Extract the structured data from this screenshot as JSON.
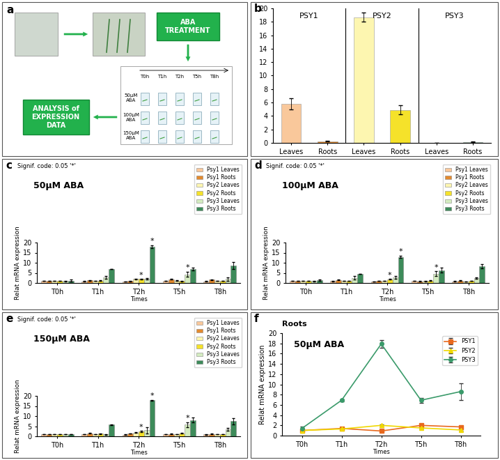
{
  "diagram": {
    "label": "a",
    "boxes": [
      "ABA TREATMENT",
      "ANALYSIS of EXPRESSION DATA"
    ],
    "times": [
      "T0h",
      "T1h",
      "T2h",
      "T5h",
      "T8h"
    ],
    "doses": [
      "50µM ABA",
      "100µM ABA",
      "150µM ABA"
    ]
  },
  "chart_data": [
    {
      "type": "bar",
      "annotations": [
        "b"
      ],
      "groups": [
        "PSY1",
        "PSY2",
        "PSY3"
      ],
      "categories": [
        "Leaves",
        "Roots",
        "Leaves",
        "Roots",
        "Leaves",
        "Roots"
      ],
      "values": [
        5.8,
        0.25,
        18.7,
        4.9,
        0.0,
        0.15
      ],
      "errors": [
        0.8,
        0.05,
        0.7,
        0.7,
        0.0,
        0.05
      ],
      "colors": [
        "#f9c89b",
        "#e38a2e",
        "#fdf6b0",
        "#f5e22a",
        "#d4ecc0",
        "#3d8b5a"
      ],
      "ylim": [
        0,
        20
      ],
      "yticks": [
        0,
        2,
        4,
        6,
        8,
        10,
        12,
        14,
        16,
        18,
        20
      ]
    },
    {
      "type": "bar",
      "annotations": [
        "c",
        "Signif. code: 0.05 '*'"
      ],
      "title": "50µM ABA",
      "xlabel": "Times",
      "ylabel": "Relat mRNA expression",
      "legend": "upper right",
      "categories": [
        "T0h",
        "T1h",
        "T2h",
        "T5h",
        "T8h"
      ],
      "ylim": [
        0,
        20
      ],
      "yticks": [
        0,
        5,
        10,
        15,
        20
      ],
      "series": [
        {
          "name": "Psy1 Leaves",
          "color": "#f9c89b",
          "values": [
            1.0,
            0.8,
            0.7,
            1.0,
            0.8
          ],
          "errors": [
            0.1,
            0.1,
            0.1,
            0.1,
            0.1
          ],
          "significance": [
            null,
            null,
            null,
            null,
            null
          ]
        },
        {
          "name": "Psy1 Roots",
          "color": "#e38a2e",
          "values": [
            1.0,
            1.3,
            0.9,
            1.8,
            1.6
          ],
          "errors": [
            0.1,
            0.1,
            0.1,
            0.2,
            0.2
          ],
          "significance": [
            null,
            null,
            null,
            null,
            null
          ]
        },
        {
          "name": "Psy2 Leaves",
          "color": "#fdf6b0",
          "values": [
            1.0,
            1.0,
            2.0,
            1.2,
            1.0
          ],
          "errors": [
            0.1,
            0.1,
            0.2,
            0.1,
            0.1
          ],
          "significance": [
            null,
            null,
            null,
            null,
            null
          ]
        },
        {
          "name": "Psy2 Roots",
          "color": "#f5e22a",
          "values": [
            1.0,
            1.2,
            1.9,
            0.9,
            1.0
          ],
          "errors": [
            0.1,
            0.1,
            0.1,
            0.1,
            0.1
          ],
          "significance": [
            null,
            null,
            "*",
            null,
            null
          ]
        },
        {
          "name": "Psy3 Leaves",
          "color": "#d4ecc0",
          "values": [
            1.0,
            2.8,
            2.0,
            4.3,
            2.0
          ],
          "errors": [
            0.2,
            0.8,
            0.3,
            1.2,
            0.8
          ],
          "significance": [
            null,
            null,
            null,
            "*",
            null
          ]
        },
        {
          "name": "Psy3 Roots",
          "color": "#3d8b5a",
          "values": [
            1.2,
            6.9,
            17.9,
            6.9,
            8.6
          ],
          "errors": [
            0.5,
            0.1,
            0.8,
            0.6,
            1.7
          ],
          "significance": [
            null,
            null,
            "*",
            null,
            null
          ]
        }
      ]
    },
    {
      "type": "bar",
      "annotations": [
        "d",
        "Signif. code: 0.05 '*'"
      ],
      "title": "100µM ABA",
      "xlabel": "Times",
      "ylabel": "Relat mRNA expression",
      "legend": "upper right",
      "categories": [
        "T0h",
        "T1h",
        "T2h",
        "T5h",
        "T8h"
      ],
      "ylim": [
        0,
        20
      ],
      "yticks": [
        0,
        5,
        10,
        15,
        20
      ],
      "series": [
        {
          "name": "Psy1 Leaves",
          "color": "#f9c89b",
          "values": [
            1.0,
            0.9,
            0.7,
            1.0,
            0.8
          ],
          "errors": [
            0.1,
            0.1,
            0.1,
            0.1,
            0.1
          ],
          "significance": [
            null,
            null,
            null,
            null,
            null
          ]
        },
        {
          "name": "Psy1 Roots",
          "color": "#e38a2e",
          "values": [
            1.0,
            1.5,
            1.0,
            0.8,
            1.2
          ],
          "errors": [
            0.1,
            0.1,
            0.1,
            0.1,
            0.1
          ],
          "significance": [
            null,
            null,
            null,
            null,
            null
          ]
        },
        {
          "name": "Psy2 Leaves",
          "color": "#fdf6b0",
          "values": [
            1.0,
            1.0,
            1.0,
            0.9,
            0.7
          ],
          "errors": [
            0.1,
            0.1,
            0.1,
            0.1,
            0.1
          ],
          "significance": [
            null,
            null,
            null,
            null,
            null
          ]
        },
        {
          "name": "Psy2 Roots",
          "color": "#f5e22a",
          "values": [
            1.0,
            1.1,
            1.8,
            1.2,
            1.1
          ],
          "errors": [
            0.1,
            0.1,
            0.2,
            0.1,
            0.1
          ],
          "significance": [
            null,
            null,
            "*",
            null,
            null
          ]
        },
        {
          "name": "Psy3 Leaves",
          "color": "#d4ecc0",
          "values": [
            1.0,
            2.5,
            2.8,
            4.5,
            2.3
          ],
          "errors": [
            0.2,
            0.8,
            0.6,
            1.2,
            0.3
          ],
          "significance": [
            null,
            null,
            null,
            "*",
            null
          ]
        },
        {
          "name": "Psy3 Roots",
          "color": "#3d8b5a",
          "values": [
            1.3,
            4.5,
            12.9,
            6.3,
            8.2
          ],
          "errors": [
            0.4,
            0.1,
            0.6,
            1.2,
            1.0
          ],
          "significance": [
            null,
            null,
            "*",
            null,
            null
          ]
        }
      ]
    },
    {
      "type": "bar",
      "annotations": [
        "e",
        "Signif. code: 0.05 '*'"
      ],
      "title": "150µM ABA",
      "xlabel": "Times",
      "ylabel": "Relat mRNA expression",
      "legend": "upper right",
      "categories": [
        "T0h",
        "T1h",
        "T2h",
        "T5h",
        "T8h"
      ],
      "ylim": [
        0,
        20
      ],
      "yticks": [
        0,
        5,
        10,
        15,
        20
      ],
      "series": [
        {
          "name": "Psy1 Leaves",
          "color": "#f9c89b",
          "values": [
            1.0,
            1.0,
            0.8,
            1.1,
            0.9
          ],
          "errors": [
            0.1,
            0.1,
            0.1,
            0.1,
            0.1
          ],
          "significance": [
            null,
            null,
            null,
            null,
            null
          ]
        },
        {
          "name": "Psy1 Roots",
          "color": "#e38a2e",
          "values": [
            1.0,
            1.5,
            1.4,
            1.2,
            1.2
          ],
          "errors": [
            0.1,
            0.1,
            0.1,
            0.1,
            0.1
          ],
          "significance": [
            null,
            null,
            null,
            null,
            null
          ]
        },
        {
          "name": "Psy2 Leaves",
          "color": "#fdf6b0",
          "values": [
            1.0,
            1.0,
            1.8,
            1.0,
            1.0
          ],
          "errors": [
            0.1,
            0.1,
            0.2,
            0.1,
            0.1
          ],
          "significance": [
            null,
            null,
            null,
            null,
            null
          ]
        },
        {
          "name": "Psy2 Roots",
          "color": "#f5e22a",
          "values": [
            1.0,
            1.3,
            2.4,
            1.5,
            1.0
          ],
          "errors": [
            0.1,
            0.1,
            0.3,
            0.1,
            0.1
          ],
          "significance": [
            null,
            null,
            "*",
            null,
            null
          ]
        },
        {
          "name": "Psy3 Leaves",
          "color": "#d4ecc0",
          "values": [
            1.0,
            0.9,
            3.0,
            5.8,
            3.5
          ],
          "errors": [
            0.1,
            0.1,
            1.5,
            1.2,
            0.6
          ],
          "significance": [
            null,
            null,
            null,
            "*",
            null
          ]
        },
        {
          "name": "Psy3 Roots",
          "color": "#3d8b5a",
          "values": [
            1.0,
            5.7,
            17.8,
            8.0,
            7.5
          ],
          "errors": [
            0.1,
            0.2,
            0.3,
            1.2,
            1.5
          ],
          "significance": [
            null,
            null,
            "*",
            null,
            null
          ]
        }
      ]
    },
    {
      "type": "line",
      "annotations": [
        "f",
        "50µM ABA"
      ],
      "title": "Roots",
      "xlabel": "Times",
      "ylabel": "Relat mRNA expression",
      "legend": "upper right",
      "categories": [
        "T0h",
        "T1h",
        "T2h",
        "T5h",
        "T8h"
      ],
      "ylim": [
        0,
        20
      ],
      "yticks": [
        0,
        2,
        4,
        6,
        8,
        10,
        12,
        14,
        16,
        18,
        20
      ],
      "series": [
        {
          "name": "PSY1",
          "color": "#e8691e",
          "marker": "square",
          "values": [
            1.0,
            1.4,
            0.9,
            2.0,
            1.7
          ],
          "errors": [
            0.2,
            0.1,
            0.1,
            0.3,
            0.2
          ]
        },
        {
          "name": "PSY2",
          "color": "#f0d800",
          "marker": "triangle",
          "values": [
            1.0,
            1.3,
            2.0,
            1.5,
            1.1
          ],
          "errors": [
            0.1,
            0.1,
            0.2,
            0.2,
            0.2
          ]
        },
        {
          "name": "PSY3",
          "color": "#3a9a6a",
          "marker": "circle",
          "values": [
            1.4,
            6.9,
            17.9,
            6.9,
            8.6
          ],
          "errors": [
            0.4,
            0.2,
            0.8,
            0.5,
            1.6
          ]
        }
      ]
    }
  ]
}
